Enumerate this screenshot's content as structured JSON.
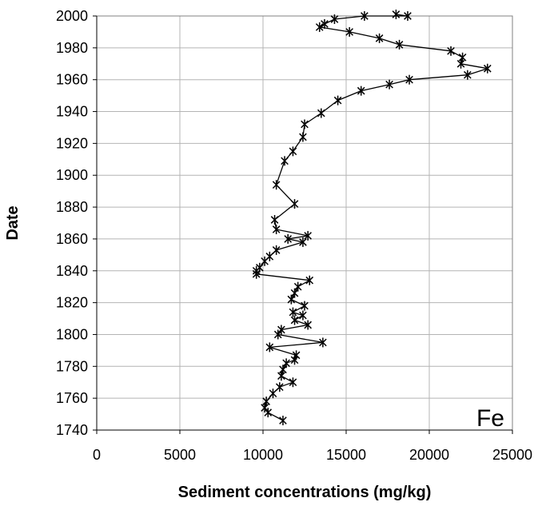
{
  "chart_data": {
    "type": "scatter",
    "xlabel": "Sediment concentrations (mg/kg)",
    "ylabel": "Date",
    "annotation": "Fe",
    "xlim": [
      0,
      25000
    ],
    "ylim": [
      1740,
      2000
    ],
    "xticks": [
      0,
      5000,
      10000,
      15000,
      20000,
      25000
    ],
    "yticks": [
      1740,
      1760,
      1780,
      1800,
      1820,
      1840,
      1860,
      1880,
      1900,
      1920,
      1940,
      1960,
      1980,
      2000
    ],
    "grid": true,
    "line_color": "#000000",
    "marker": "asterisk",
    "series": [
      {
        "x": [
          18000,
          18700,
          16100,
          14300,
          13700,
          13400,
          15200,
          17000,
          18200,
          21300,
          22000,
          21900,
          23500,
          22300,
          18800,
          17600,
          15900,
          14500,
          13500,
          12500,
          12400,
          11800,
          11300,
          10800,
          11900,
          10700,
          10800,
          12700,
          11500,
          12400,
          10800,
          10400,
          10100,
          9800,
          9600,
          9600,
          12800,
          12100,
          11900,
          11700,
          12500,
          11800,
          12400,
          11900,
          12700,
          11100,
          10900,
          13600,
          10400,
          12000,
          11900,
          11400,
          11200,
          11100,
          11800,
          11000,
          10600,
          10200,
          10100,
          10300,
          11200
        ],
        "y": [
          2001,
          2000,
          2000,
          1998,
          1995,
          1993,
          1990,
          1986,
          1982,
          1978,
          1974,
          1970,
          1967,
          1963,
          1960,
          1957,
          1953,
          1947,
          1939,
          1932,
          1924,
          1915,
          1909,
          1894,
          1882,
          1872,
          1866,
          1862,
          1860,
          1858,
          1853,
          1849,
          1846,
          1842,
          1840,
          1838,
          1834,
          1830,
          1826,
          1822,
          1818,
          1814,
          1812,
          1809,
          1806,
          1803,
          1800,
          1795,
          1792,
          1787,
          1784,
          1782,
          1778,
          1774,
          1770,
          1767,
          1763,
          1758,
          1754,
          1751,
          1746
        ]
      }
    ]
  }
}
